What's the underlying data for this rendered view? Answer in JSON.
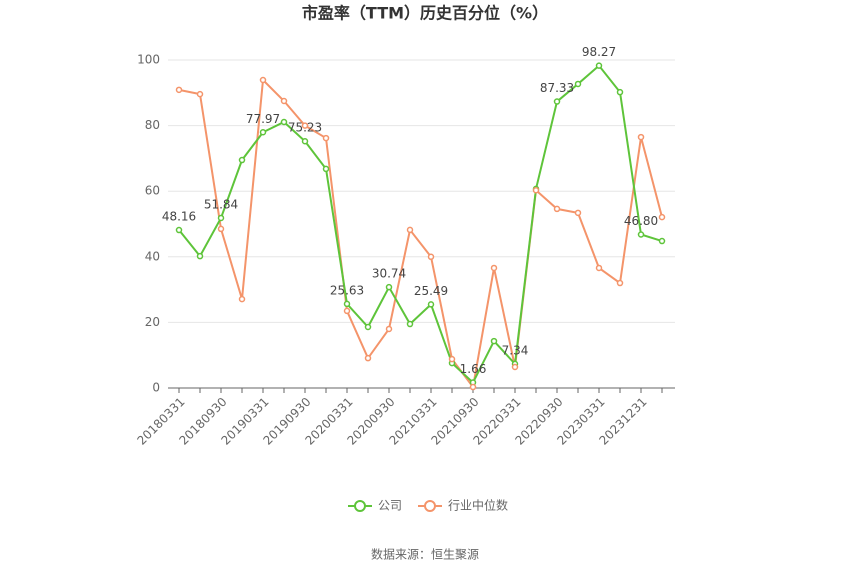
{
  "chart_data": {
    "type": "line",
    "title": "市盈率（TTM）历史百分位（%）",
    "source": "数据来源：恒生聚源",
    "categories": [
      "20180331",
      null,
      "20180930",
      null,
      "20190331",
      null,
      "20190930",
      null,
      "20200331",
      null,
      "20200930",
      null,
      "20210331",
      null,
      "20210930",
      null,
      "20220331",
      null,
      "20220930",
      null,
      "20230331",
      null,
      "20231231",
      null
    ],
    "series": [
      {
        "name": "公司",
        "color": "#5ec43a",
        "values": [
          48.16,
          40.2,
          51.84,
          69.5,
          77.97,
          81.1,
          75.23,
          66.8,
          25.63,
          18.6,
          30.74,
          19.5,
          25.49,
          7.6,
          1.66,
          14.3,
          7.34,
          60.7,
          87.33,
          92.7,
          98.27,
          90.2,
          46.8,
          44.8
        ],
        "value_labels": [
          "48.16",
          null,
          "51.84",
          null,
          "77.97",
          null,
          "75.23",
          null,
          "25.63",
          null,
          "30.74",
          null,
          "25.49",
          null,
          "1.66",
          null,
          "7.34",
          null,
          "87.33",
          null,
          "98.27",
          null,
          "46.80",
          null
        ]
      },
      {
        "name": "行业中位数",
        "color": "#f4946a",
        "values": [
          90.9,
          89.6,
          48.5,
          27.1,
          93.9,
          87.5,
          80.0,
          76.2,
          23.5,
          9.1,
          18.0,
          48.2,
          40.0,
          8.8,
          0.3,
          36.6,
          6.4,
          60.3,
          54.6,
          53.4,
          36.6,
          32.0,
          76.5,
          52.1
        ]
      }
    ],
    "ylim": [
      0,
      100
    ],
    "yticks": [
      0,
      20,
      40,
      60,
      80,
      100
    ],
    "grid": true
  }
}
